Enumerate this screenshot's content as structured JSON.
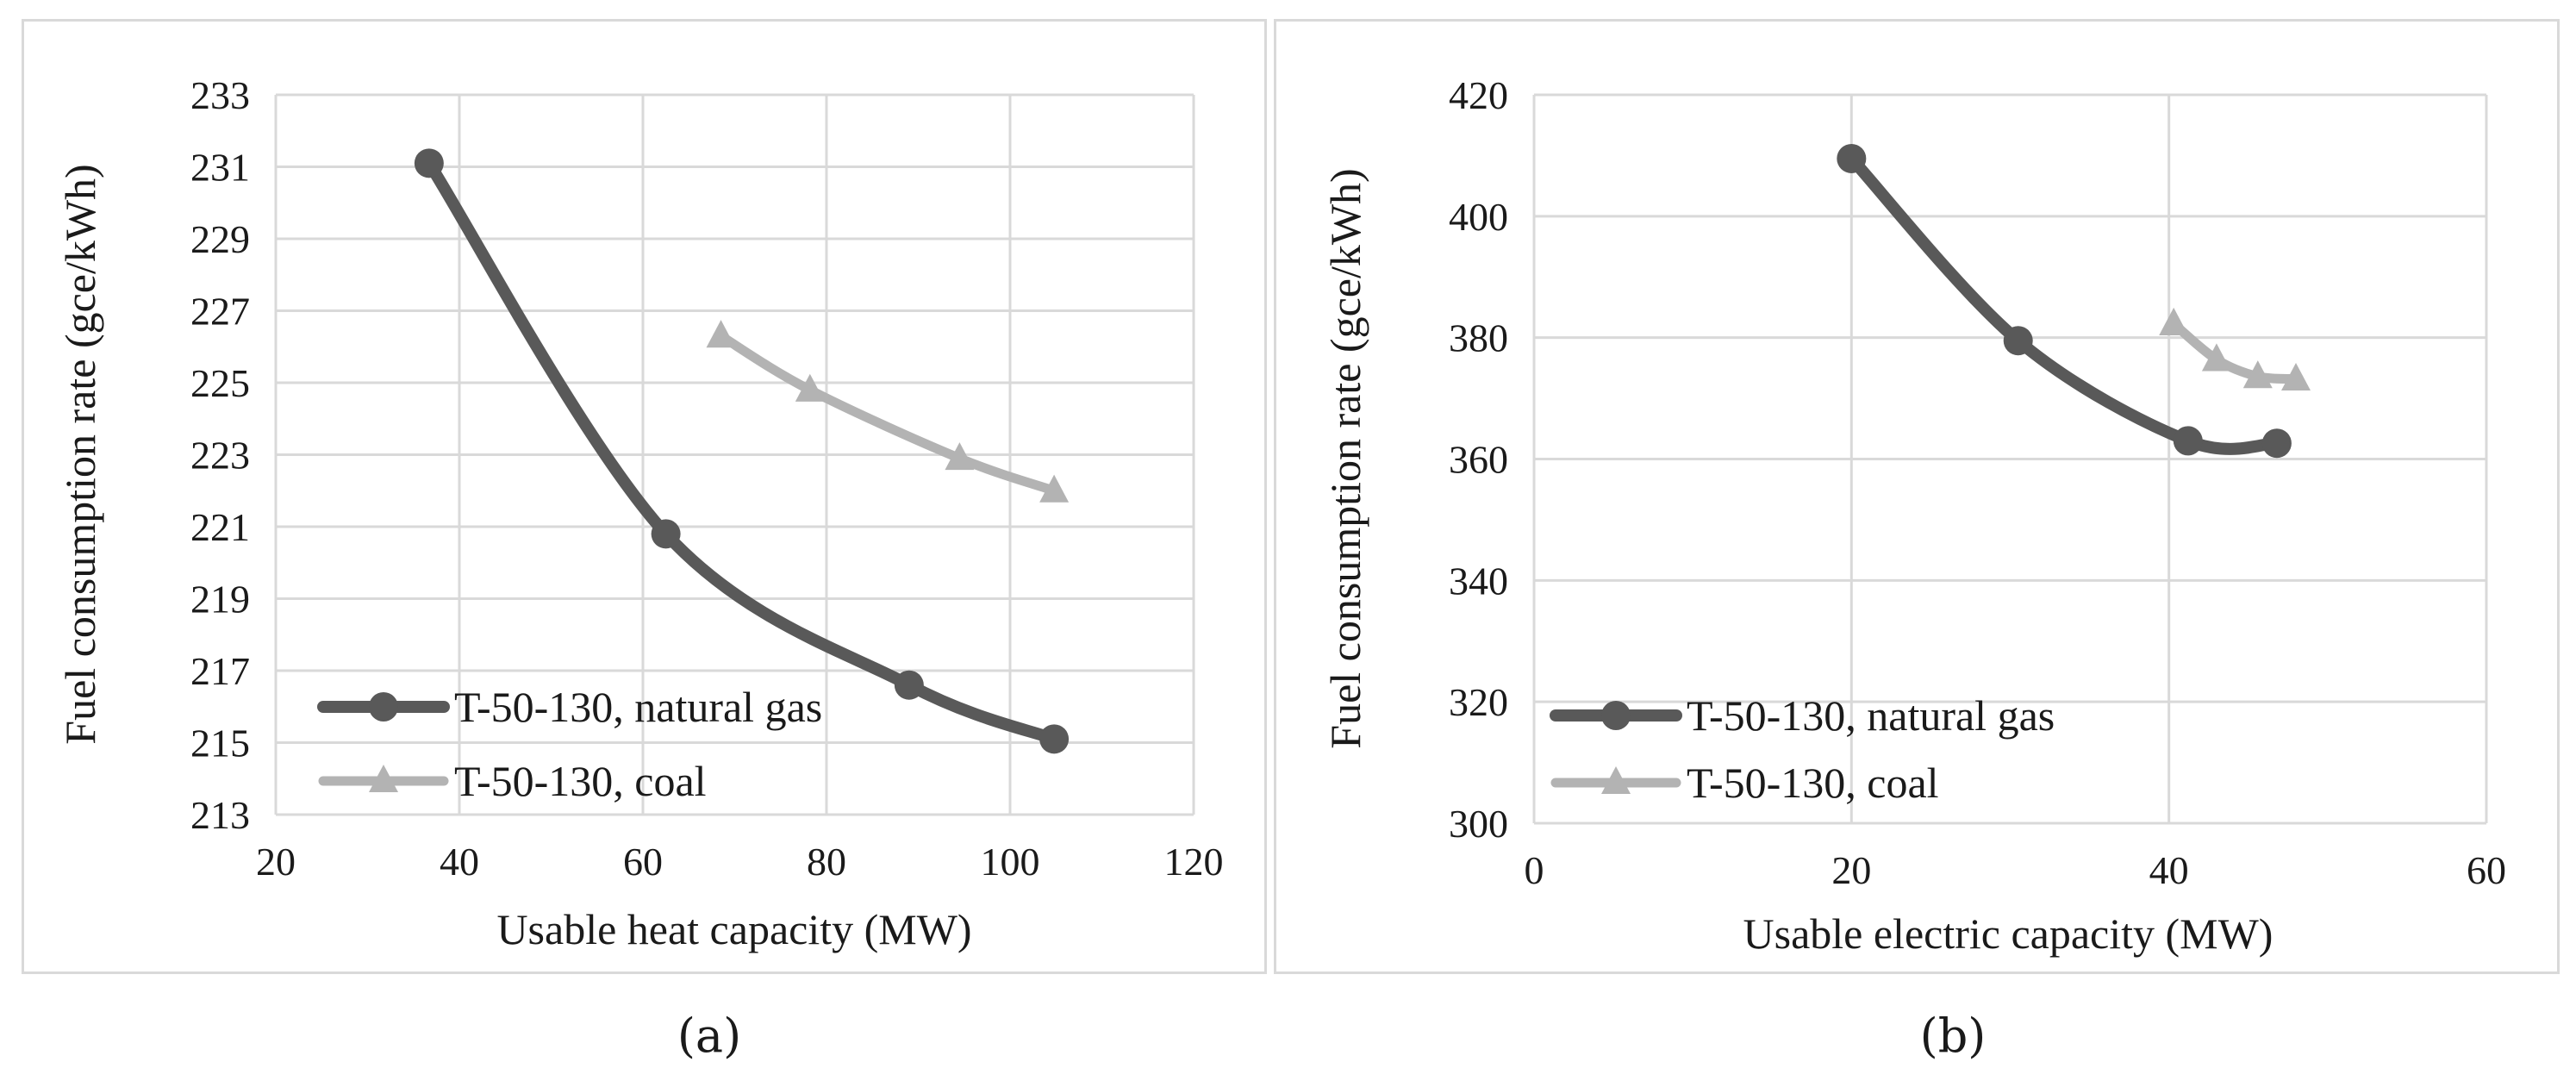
{
  "captions": {
    "a": "(a)",
    "b": "(b)"
  },
  "colors": {
    "gas": "#595959",
    "coal": "#b3b3b3",
    "grid": "#d9d9d9"
  },
  "chart_data": [
    {
      "type": "line",
      "title": "",
      "xlabel": "Usable heat capacity (MW)",
      "ylabel": "Fuel consumption rate (gce/kWh)",
      "xlim": [
        20,
        120
      ],
      "ylim": [
        213,
        233
      ],
      "xticks": [
        20,
        40,
        60,
        80,
        100,
        120
      ],
      "yticks": [
        213,
        215,
        217,
        219,
        221,
        223,
        225,
        227,
        229,
        231,
        233
      ],
      "grid": true,
      "legend_position": "bottom-left",
      "series": [
        {
          "name": "T-50-130, natural gas",
          "marker": "circle",
          "color": "#595959",
          "x": [
            36.7,
            62.5,
            89.0,
            104.8
          ],
          "y": [
            231.1,
            220.8,
            216.6,
            215.1
          ]
        },
        {
          "name": "T-50-130, coal",
          "marker": "triangle",
          "color": "#b3b3b3",
          "x": [
            68.5,
            78.2,
            94.5,
            104.8
          ],
          "y": [
            226.3,
            224.8,
            222.9,
            222.0
          ]
        }
      ]
    },
    {
      "type": "line",
      "title": "",
      "xlabel": "Usable electric capacity (MW)",
      "ylabel": "Fuel consumption rate (gce/kWh)",
      "xlim": [
        0,
        60
      ],
      "ylim": [
        300,
        420
      ],
      "xticks": [
        0,
        20,
        40,
        60
      ],
      "yticks": [
        300,
        320,
        340,
        360,
        380,
        400,
        420
      ],
      "grid": true,
      "legend_position": "bottom-left",
      "series": [
        {
          "name": "T-50-130, natural gas",
          "marker": "circle",
          "color": "#595959",
          "x": [
            20.0,
            30.5,
            41.2,
            46.8
          ],
          "y": [
            409.5,
            379.5,
            363.0,
            362.6
          ]
        },
        {
          "name": "T-50-130, coal",
          "marker": "triangle",
          "color": "#b3b3b3",
          "x": [
            40.3,
            43.0,
            45.6,
            48.0
          ],
          "y": [
            382.3,
            376.4,
            373.6,
            373.2
          ]
        }
      ]
    }
  ]
}
